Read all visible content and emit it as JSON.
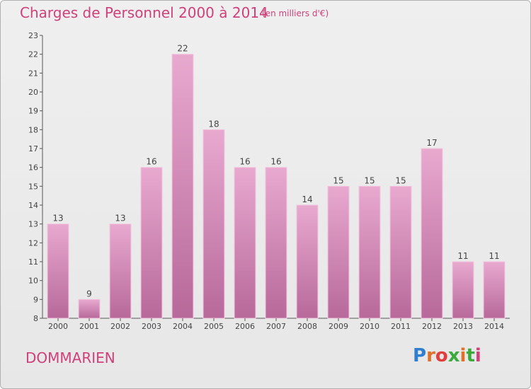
{
  "header": {
    "title": "Charges de Personnel 2000 à 2014",
    "subtitle": "(en milliers d'€)"
  },
  "footer": {
    "commune": "DOMMARIEN",
    "logo_text": "Proxiti",
    "logo_colors": [
      "#2f7fd0",
      "#e0702a",
      "#e23c3c",
      "#3aaa3a",
      "#e0702a",
      "#3aaa3a",
      "#d0407a"
    ]
  },
  "colors": {
    "title": "#d0407a",
    "bar_light": "#e8a9cf",
    "bar_dark": "#b7699a",
    "axis": "#555555"
  },
  "chart_data": {
    "type": "bar",
    "title": "Charges de Personnel 2000 à 2014",
    "categories": [
      "2000",
      "2001",
      "2002",
      "2003",
      "2004",
      "2005",
      "2006",
      "2007",
      "2008",
      "2009",
      "2010",
      "2011",
      "2012",
      "2013",
      "2014"
    ],
    "values": [
      13,
      9,
      13,
      16,
      22,
      18,
      16,
      16,
      14,
      15,
      15,
      15,
      17,
      11,
      11
    ],
    "ylim": [
      8,
      23
    ],
    "yticks": [
      8,
      9,
      10,
      11,
      12,
      13,
      14,
      15,
      16,
      17,
      18,
      19,
      20,
      21,
      22,
      23
    ],
    "grid": false,
    "data_labels": true
  }
}
